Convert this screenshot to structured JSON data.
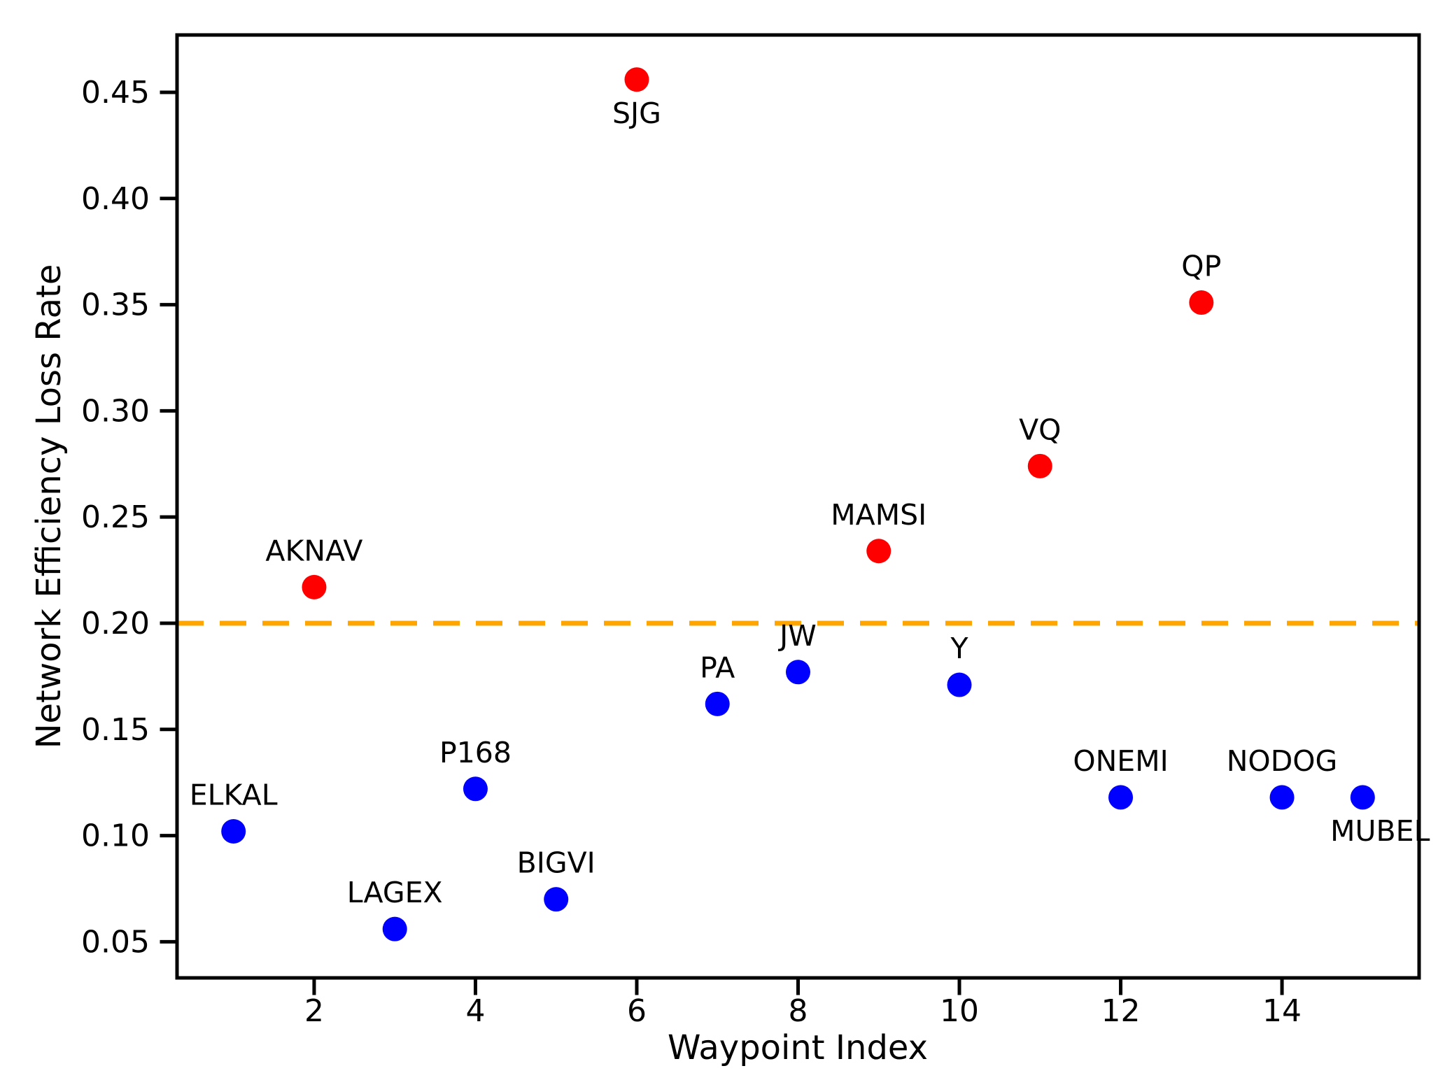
{
  "page": {
    "background": "#ffffff"
  },
  "chart_data": {
    "type": "scatter",
    "title": "",
    "xlabel": "Waypoint Index",
    "ylabel": "Network Efficiency Loss Rate",
    "xlim": [
      0.3,
      15.7
    ],
    "ylim": [
      0.033,
      0.477
    ],
    "grid": false,
    "legend": null,
    "x_ticks": {
      "values": [
        2,
        4,
        6,
        8,
        10,
        12,
        14
      ],
      "labels": [
        "2",
        "4",
        "6",
        "8",
        "10",
        "12",
        "14"
      ]
    },
    "y_ticks": {
      "values": [
        0.05,
        0.1,
        0.15,
        0.2,
        0.25,
        0.3,
        0.35,
        0.4,
        0.45
      ],
      "labels": [
        "0.05",
        "0.10",
        "0.15",
        "0.20",
        "0.25",
        "0.30",
        "0.35",
        "0.40",
        "0.45"
      ]
    },
    "threshold_line": {
      "y": 0.2,
      "color": "#ffa500",
      "style": "dashed"
    },
    "colors": {
      "above_threshold": "#ff0000",
      "below_threshold": "#0000ff",
      "axes": "#000000"
    },
    "points": [
      {
        "label": "ELKAL",
        "x": 1,
        "y": 0.102,
        "category": "below_threshold",
        "label_position": "above"
      },
      {
        "label": "AKNAV",
        "x": 2,
        "y": 0.217,
        "category": "above_threshold",
        "label_position": "above"
      },
      {
        "label": "LAGEX",
        "x": 3,
        "y": 0.056,
        "category": "below_threshold",
        "label_position": "above"
      },
      {
        "label": "P168",
        "x": 4,
        "y": 0.122,
        "category": "below_threshold",
        "label_position": "above"
      },
      {
        "label": "BIGVI",
        "x": 5,
        "y": 0.07,
        "category": "below_threshold",
        "label_position": "above"
      },
      {
        "label": "SJG",
        "x": 6,
        "y": 0.456,
        "category": "above_threshold",
        "label_position": "below"
      },
      {
        "label": "PA",
        "x": 7,
        "y": 0.162,
        "category": "below_threshold",
        "label_position": "above"
      },
      {
        "label": "JW",
        "x": 8,
        "y": 0.177,
        "category": "below_threshold",
        "label_position": "above"
      },
      {
        "label": "MAMSI",
        "x": 9,
        "y": 0.234,
        "category": "above_threshold",
        "label_position": "above"
      },
      {
        "label": "Y",
        "x": 10,
        "y": 0.171,
        "category": "below_threshold",
        "label_position": "above"
      },
      {
        "label": "VQ",
        "x": 11,
        "y": 0.274,
        "category": "above_threshold",
        "label_position": "above"
      },
      {
        "label": "ONEMI",
        "x": 12,
        "y": 0.118,
        "category": "below_threshold",
        "label_position": "above"
      },
      {
        "label": "QP",
        "x": 13,
        "y": 0.351,
        "category": "above_threshold",
        "label_position": "above"
      },
      {
        "label": "NODOG",
        "x": 14,
        "y": 0.118,
        "category": "below_threshold",
        "label_position": "above"
      },
      {
        "label": "MUBEL",
        "x": 15,
        "y": 0.118,
        "category": "below_threshold",
        "label_position": "below-right"
      }
    ]
  }
}
